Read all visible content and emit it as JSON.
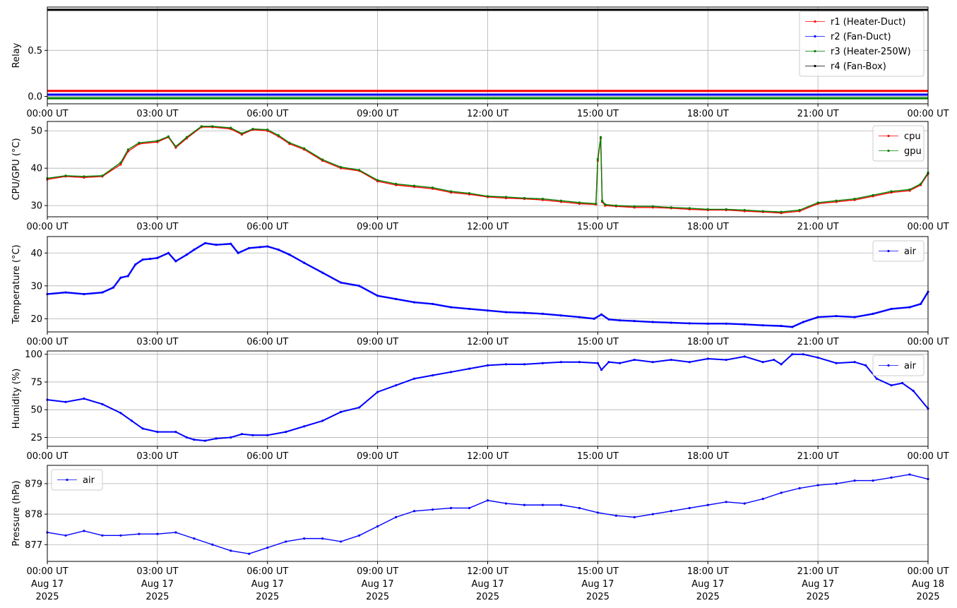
{
  "chart_data": [
    {
      "id": "relay",
      "type": "line",
      "ylabel": "Relay",
      "ylim": [
        -0.08,
        0.97
      ],
      "yticks": [
        0.0,
        0.5
      ],
      "ytick_labels": [
        "0.0",
        "0.5"
      ],
      "grid": true,
      "legend": "top-right",
      "xlim": [
        "2025-08-17T00:00",
        "2025-08-18T00:00"
      ],
      "xtick_labels": [
        "00:00 UT",
        "03:00 UT",
        "06:00 UT",
        "09:00 UT",
        "12:00 UT",
        "15:00 UT",
        "18:00 UT",
        "21:00 UT",
        "00:00 UT"
      ],
      "series": [
        {
          "name": "r1 (Heater-Duct)",
          "color": "#ff0000",
          "offset": 0.06,
          "values": [
            0,
            0
          ]
        },
        {
          "name": "r2 (Fan-Duct)",
          "color": "#0000ff",
          "offset": 0.02,
          "values": [
            0,
            0
          ]
        },
        {
          "name": "r3 (Heater-250W)",
          "color": "#008000",
          "offset": -0.02,
          "values": [
            0,
            0
          ]
        },
        {
          "name": "r4 (Fan-Box)",
          "color": "#000000",
          "offset": -0.06,
          "values": [
            1,
            1
          ]
        }
      ],
      "x": [
        0,
        24
      ]
    },
    {
      "id": "cpugpu",
      "type": "line",
      "ylabel": "CPU/GPU (°C)",
      "ylim": [
        27,
        52.5
      ],
      "yticks": [
        30,
        40,
        50
      ],
      "ytick_labels": [
        "30",
        "40",
        "50"
      ],
      "grid": true,
      "legend": "top-right",
      "xtick_labels": [
        "00:00 UT",
        "03:00 UT",
        "06:00 UT",
        "09:00 UT",
        "12:00 UT",
        "15:00 UT",
        "18:00 UT",
        "21:00 UT",
        "00:00 UT"
      ],
      "x": [
        0,
        0.5,
        1.0,
        1.5,
        2.0,
        2.2,
        2.5,
        3.0,
        3.3,
        3.5,
        3.8,
        4.2,
        4.5,
        5.0,
        5.3,
        5.6,
        6.0,
        6.3,
        6.6,
        7.0,
        7.5,
        8.0,
        8.5,
        9.0,
        9.5,
        10.0,
        10.5,
        11.0,
        11.5,
        12.0,
        12.5,
        13.0,
        13.5,
        14.0,
        14.5,
        14.95,
        15.0,
        15.08,
        15.12,
        15.2,
        15.5,
        16.0,
        16.5,
        17.0,
        17.5,
        18.0,
        18.5,
        19.0,
        19.5,
        20.0,
        20.5,
        21.0,
        21.5,
        22.0,
        22.5,
        23.0,
        23.5,
        23.8,
        24.0
      ],
      "series": [
        {
          "name": "cpu",
          "color": "#ff0000",
          "values": [
            37.0,
            37.8,
            37.5,
            37.8,
            41.0,
            44.5,
            46.5,
            47.0,
            48.3,
            45.5,
            48.0,
            51.0,
            51.0,
            50.5,
            49.0,
            50.3,
            50.0,
            48.5,
            46.5,
            45.0,
            42.0,
            40.0,
            39.3,
            36.5,
            35.5,
            35.0,
            34.5,
            33.5,
            33.0,
            32.3,
            32.0,
            31.8,
            31.5,
            31.0,
            30.5,
            30.3,
            42.0,
            48.0,
            31.0,
            30.0,
            29.8,
            29.5,
            29.5,
            29.3,
            29.0,
            28.8,
            28.8,
            28.5,
            28.3,
            28.0,
            28.5,
            30.5,
            31.0,
            31.5,
            32.5,
            33.5,
            34.0,
            35.5,
            38.5
          ]
        },
        {
          "name": "gpu",
          "color": "#008000",
          "values": [
            37.3,
            38.0,
            37.8,
            38.0,
            41.5,
            45.0,
            46.8,
            47.3,
            48.5,
            45.8,
            48.3,
            51.2,
            51.2,
            50.8,
            49.3,
            50.5,
            50.3,
            48.8,
            46.8,
            45.3,
            42.3,
            40.3,
            39.5,
            36.8,
            35.8,
            35.3,
            34.8,
            33.8,
            33.3,
            32.5,
            32.3,
            32.0,
            31.8,
            31.3,
            30.8,
            30.5,
            42.5,
            48.3,
            31.3,
            30.3,
            30.0,
            29.8,
            29.8,
            29.5,
            29.3,
            29.0,
            29.0,
            28.8,
            28.5,
            28.3,
            28.8,
            30.8,
            31.3,
            31.8,
            32.8,
            33.8,
            34.3,
            35.8,
            38.8
          ]
        }
      ]
    },
    {
      "id": "temperature",
      "type": "line",
      "ylabel": "Temperature (°C)",
      "ylim": [
        16,
        45
      ],
      "yticks": [
        20,
        30,
        40
      ],
      "ytick_labels": [
        "20",
        "30",
        "40"
      ],
      "grid": true,
      "legend": "top-right",
      "xtick_labels": [
        "00:00 UT",
        "03:00 UT",
        "06:00 UT",
        "09:00 UT",
        "12:00 UT",
        "15:00 UT",
        "18:00 UT",
        "21:00 UT",
        "00:00 UT"
      ],
      "x": [
        0,
        0.5,
        1.0,
        1.5,
        1.8,
        2.0,
        2.2,
        2.4,
        2.6,
        2.8,
        3.0,
        3.3,
        3.5,
        3.8,
        4.0,
        4.3,
        4.6,
        5.0,
        5.2,
        5.5,
        5.8,
        6.0,
        6.3,
        6.6,
        7.0,
        7.5,
        8.0,
        8.5,
        9.0,
        9.5,
        10.0,
        10.5,
        11.0,
        11.5,
        12.0,
        12.5,
        13.0,
        13.5,
        14.0,
        14.5,
        14.9,
        15.1,
        15.3,
        15.6,
        16.0,
        16.5,
        17.0,
        17.5,
        18.0,
        18.5,
        19.0,
        19.5,
        20.0,
        20.3,
        20.6,
        21.0,
        21.5,
        22.0,
        22.5,
        23.0,
        23.5,
        23.8,
        24.0
      ],
      "series": [
        {
          "name": "air",
          "color": "#0000ff",
          "values": [
            27.5,
            28.0,
            27.5,
            28.0,
            29.5,
            32.5,
            33.0,
            36.5,
            38.0,
            38.2,
            38.5,
            40.0,
            37.5,
            39.5,
            41.0,
            43.0,
            42.5,
            42.8,
            40.0,
            41.5,
            41.8,
            42.0,
            41.0,
            39.5,
            37.0,
            34.0,
            31.0,
            30.0,
            27.0,
            26.0,
            25.0,
            24.5,
            23.5,
            23.0,
            22.5,
            22.0,
            21.8,
            21.5,
            21.0,
            20.5,
            20.0,
            21.3,
            19.8,
            19.5,
            19.3,
            19.0,
            18.8,
            18.6,
            18.5,
            18.5,
            18.3,
            18.0,
            17.8,
            17.5,
            19.0,
            20.5,
            20.8,
            20.5,
            21.5,
            23.0,
            23.5,
            24.5,
            28.2
          ]
        }
      ]
    },
    {
      "id": "humidity",
      "type": "line",
      "ylabel": "Humidity (%)",
      "ylim": [
        17,
        103
      ],
      "yticks": [
        25,
        50,
        75,
        100
      ],
      "ytick_labels": [
        "25",
        "50",
        "75",
        "100"
      ],
      "grid": true,
      "legend": "top-right",
      "xtick_labels": [
        "00:00 UT",
        "03:00 UT",
        "06:00 UT",
        "09:00 UT",
        "12:00 UT",
        "15:00 UT",
        "18:00 UT",
        "21:00 UT",
        "00:00 UT"
      ],
      "x": [
        0,
        0.5,
        1.0,
        1.5,
        2.0,
        2.3,
        2.6,
        3.0,
        3.5,
        3.8,
        4.0,
        4.3,
        4.6,
        5.0,
        5.3,
        5.6,
        6.0,
        6.5,
        7.0,
        7.5,
        8.0,
        8.5,
        9.0,
        9.5,
        10.0,
        10.5,
        11.0,
        11.5,
        12.0,
        12.5,
        13.0,
        13.5,
        14.0,
        14.5,
        15.0,
        15.1,
        15.3,
        15.6,
        16.0,
        16.5,
        17.0,
        17.5,
        18.0,
        18.5,
        19.0,
        19.5,
        19.8,
        20.0,
        20.3,
        20.6,
        21.0,
        21.5,
        22.0,
        22.3,
        22.6,
        23.0,
        23.3,
        23.6,
        24.0
      ],
      "series": [
        {
          "name": "air",
          "color": "#0000ff",
          "values": [
            59,
            57,
            60,
            55,
            47,
            40,
            33,
            30,
            30,
            25,
            23,
            22,
            24,
            25,
            28,
            27,
            27,
            30,
            35,
            40,
            48,
            52,
            66,
            72,
            78,
            81,
            84,
            87,
            90,
            91,
            91,
            92,
            93,
            93,
            92,
            86,
            93,
            92,
            95,
            93,
            95,
            93,
            96,
            95,
            98,
            93,
            95,
            91,
            100,
            100,
            97,
            92,
            93,
            90,
            78,
            72,
            74,
            67,
            51
          ]
        }
      ]
    },
    {
      "id": "pressure",
      "type": "line",
      "ylabel": "Pressure (hPa)",
      "ylim": [
        876.45,
        879.6
      ],
      "yticks": [
        877,
        878,
        879
      ],
      "ytick_labels": [
        "877",
        "878",
        "879"
      ],
      "grid": true,
      "legend": "top-left",
      "xtick_labels": [
        "00:00 UT",
        "03:00 UT",
        "06:00 UT",
        "09:00 UT",
        "12:00 UT",
        "15:00 UT",
        "18:00 UT",
        "21:00 UT",
        "00:00 UT"
      ],
      "xtick_date_labels": [
        "Aug 17",
        "Aug 17",
        "Aug 17",
        "Aug 17",
        "Aug 17",
        "Aug 17",
        "Aug 17",
        "Aug 17",
        "Aug 18"
      ],
      "xtick_year_labels": [
        "2025",
        "2025",
        "2025",
        "2025",
        "2025",
        "2025",
        "2025",
        "2025",
        "2025"
      ],
      "x": [
        0,
        0.5,
        1.0,
        1.5,
        2.0,
        2.5,
        3.0,
        3.5,
        4.0,
        4.5,
        5.0,
        5.5,
        6.0,
        6.5,
        7.0,
        7.5,
        8.0,
        8.5,
        9.0,
        9.5,
        10.0,
        10.5,
        11.0,
        11.5,
        12.0,
        12.5,
        13.0,
        13.5,
        14.0,
        14.5,
        15.0,
        15.5,
        16.0,
        16.5,
        17.0,
        17.5,
        18.0,
        18.5,
        19.0,
        19.5,
        20.0,
        20.5,
        21.0,
        21.5,
        22.0,
        22.5,
        23.0,
        23.5,
        24.0
      ],
      "series": [
        {
          "name": "air",
          "color": "#0000ff",
          "values": [
            877.4,
            877.3,
            877.45,
            877.3,
            877.3,
            877.35,
            877.35,
            877.4,
            877.2,
            877.0,
            876.8,
            876.7,
            876.9,
            877.1,
            877.2,
            877.2,
            877.1,
            877.3,
            877.6,
            877.9,
            878.1,
            878.15,
            878.2,
            878.2,
            878.45,
            878.35,
            878.3,
            878.3,
            878.3,
            878.2,
            878.05,
            877.95,
            877.9,
            878.0,
            878.1,
            878.2,
            878.3,
            878.4,
            878.35,
            878.5,
            878.7,
            878.85,
            878.95,
            879.0,
            879.1,
            879.1,
            879.2,
            879.3,
            879.15
          ]
        }
      ]
    }
  ]
}
